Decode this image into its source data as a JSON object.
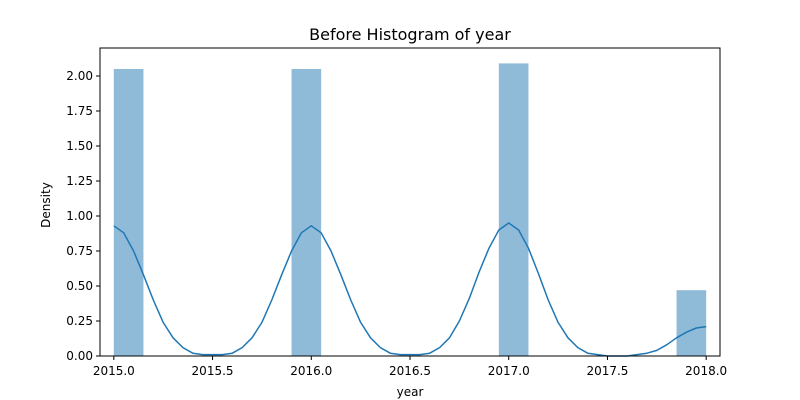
{
  "chart_data": {
    "type": "bar",
    "title": "Before Histogram of year",
    "xlabel": "year",
    "ylabel": "Density",
    "xlim": [
      2014.93,
      2018.07
    ],
    "ylim": [
      0,
      2.2
    ],
    "xticks": [
      2015.0,
      2015.5,
      2016.0,
      2016.5,
      2017.0,
      2017.5,
      2018.0
    ],
    "xtick_labels": [
      "2015.0",
      "2015.5",
      "2016.0",
      "2016.5",
      "2017.0",
      "2017.5",
      "2018.0"
    ],
    "yticks": [
      0,
      0.25,
      0.5,
      0.75,
      1.0,
      1.25,
      1.5,
      1.75,
      2.0
    ],
    "ytick_labels": [
      "0.00",
      "0.25",
      "0.50",
      "0.75",
      "1.00",
      "1.25",
      "1.50",
      "1.75",
      "2.00"
    ],
    "grid": false,
    "bars": [
      {
        "x0": 2015.0,
        "x1": 2015.15,
        "value": 2.05
      },
      {
        "x0": 2015.9,
        "x1": 2016.05,
        "value": 2.05
      },
      {
        "x0": 2016.95,
        "x1": 2017.1,
        "value": 2.09
      },
      {
        "x0": 2017.85,
        "x1": 2018.0,
        "value": 0.47
      }
    ],
    "kde": {
      "x": [
        2015.0,
        2015.05,
        2015.1,
        2015.15,
        2015.2,
        2015.25,
        2015.3,
        2015.35,
        2015.4,
        2015.45,
        2015.5,
        2015.55,
        2015.6,
        2015.65,
        2015.7,
        2015.75,
        2015.8,
        2015.85,
        2015.9,
        2015.95,
        2016.0,
        2016.05,
        2016.1,
        2016.15,
        2016.2,
        2016.25,
        2016.3,
        2016.35,
        2016.4,
        2016.45,
        2016.5,
        2016.55,
        2016.6,
        2016.65,
        2016.7,
        2016.75,
        2016.8,
        2016.85,
        2016.9,
        2016.95,
        2017.0,
        2017.05,
        2017.1,
        2017.15,
        2017.2,
        2017.25,
        2017.3,
        2017.35,
        2017.4,
        2017.45,
        2017.5,
        2017.55,
        2017.6,
        2017.65,
        2017.7,
        2017.75,
        2017.8,
        2017.85,
        2017.9,
        2017.95,
        2018.0
      ],
      "y": [
        0.93,
        0.88,
        0.75,
        0.58,
        0.4,
        0.24,
        0.13,
        0.06,
        0.02,
        0.01,
        0.01,
        0.01,
        0.02,
        0.06,
        0.13,
        0.24,
        0.4,
        0.58,
        0.75,
        0.88,
        0.93,
        0.88,
        0.75,
        0.58,
        0.4,
        0.24,
        0.13,
        0.06,
        0.02,
        0.01,
        0.01,
        0.01,
        0.02,
        0.06,
        0.13,
        0.25,
        0.41,
        0.6,
        0.77,
        0.9,
        0.95,
        0.9,
        0.77,
        0.59,
        0.4,
        0.24,
        0.13,
        0.06,
        0.02,
        0.01,
        0.0,
        0.0,
        0.0,
        0.01,
        0.02,
        0.04,
        0.08,
        0.13,
        0.17,
        0.2,
        0.21
      ]
    },
    "colors": {
      "bar": "#1f77b4",
      "bar_opacity": 0.5,
      "line": "#1f77b4"
    }
  }
}
